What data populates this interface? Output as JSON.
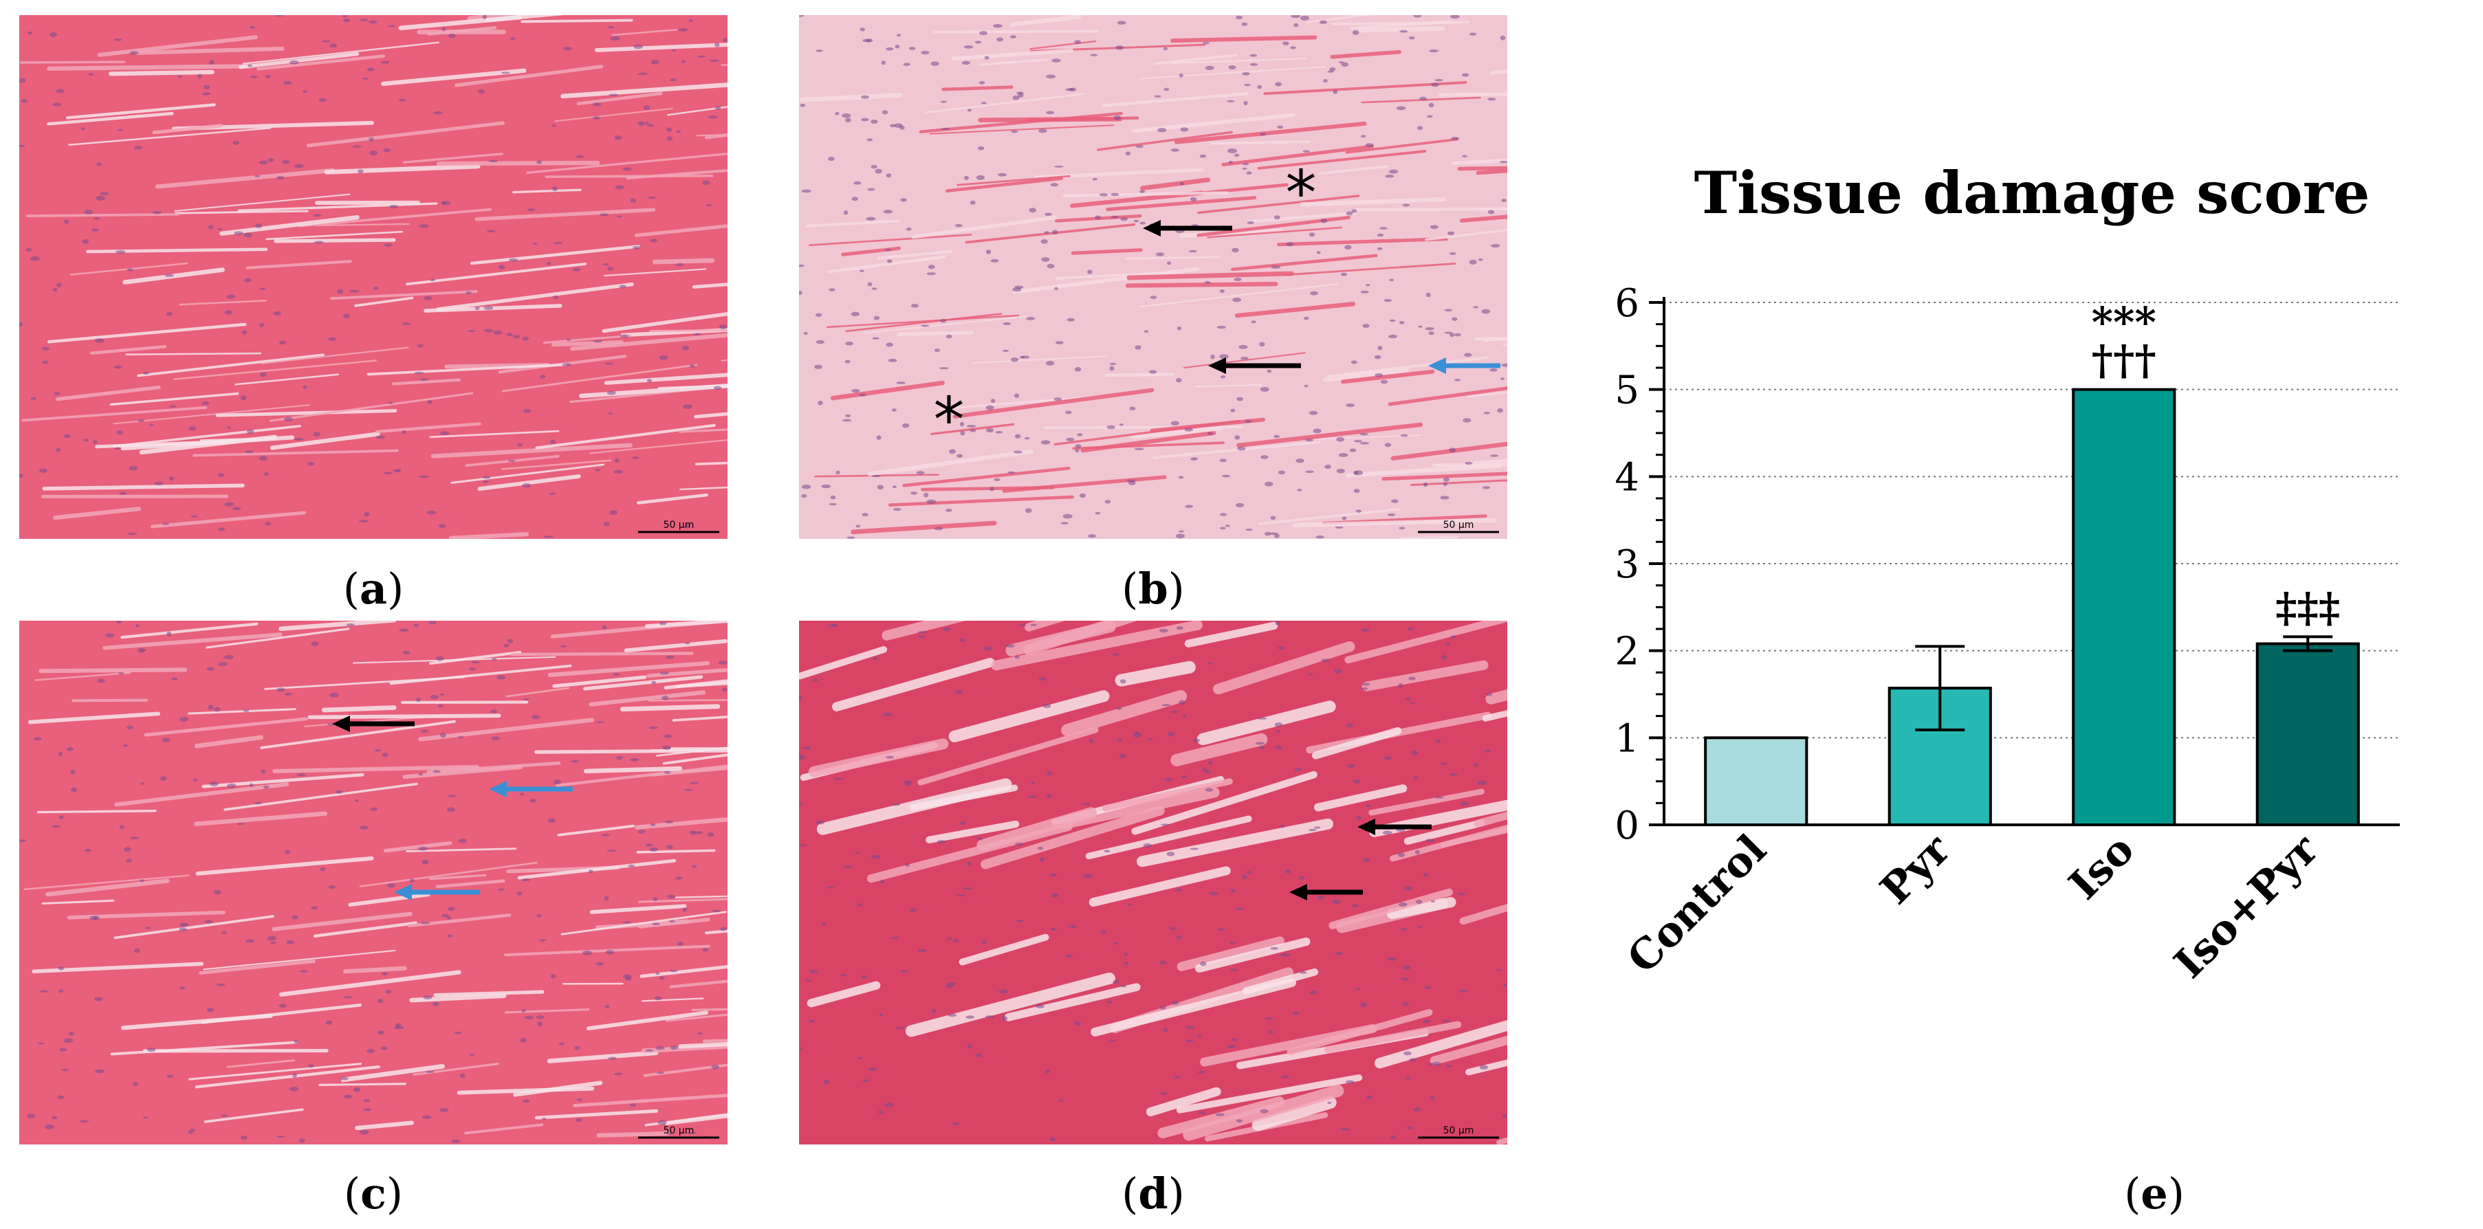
{
  "panels": [
    {
      "id": "a",
      "caption_open": "(",
      "caption_letter": "a",
      "caption_close": ")",
      "scalebar": "50 μm"
    },
    {
      "id": "b",
      "caption_open": "(",
      "caption_letter": "b",
      "caption_close": ")",
      "scalebar": "50 μm"
    },
    {
      "id": "c",
      "caption_open": "(",
      "caption_letter": "c",
      "caption_close": ")",
      "scalebar": "50 μm"
    },
    {
      "id": "d",
      "caption_open": "(",
      "caption_letter": "d",
      "caption_close": ")",
      "scalebar": "50 μm"
    },
    {
      "id": "e",
      "caption_open": "(",
      "caption_letter": "e",
      "caption_close": ")"
    }
  ],
  "annotations": {
    "asterisk": "*"
  },
  "colors": {
    "tissue": "#e8607c",
    "tissue_dark": "#d94466",
    "tissue_light": "#f2a7b8",
    "nucleus": "#7a4a8c",
    "arrow_black": "#000000",
    "arrow_blue": "#3b8fd4"
  },
  "chart_data": {
    "type": "bar",
    "title": "Tissue damage score",
    "categories": [
      "Control",
      "Pyr",
      "Iso",
      "Iso+Pyr"
    ],
    "values": [
      1.0,
      1.57,
      5.0,
      2.08
    ],
    "errors": [
      0,
      0.48,
      0,
      0.08
    ],
    "significance": [
      "",
      "",
      "***\n†††",
      "‡‡‡"
    ],
    "colors": [
      "#a8dcdc",
      "#26b9b4",
      "#009990",
      "#006460"
    ],
    "ylim": [
      0,
      6
    ],
    "yticks": [
      "0",
      "1",
      "2",
      "3",
      "4",
      "5",
      "6"
    ],
    "grid": true,
    "xlabel": "",
    "ylabel": ""
  }
}
